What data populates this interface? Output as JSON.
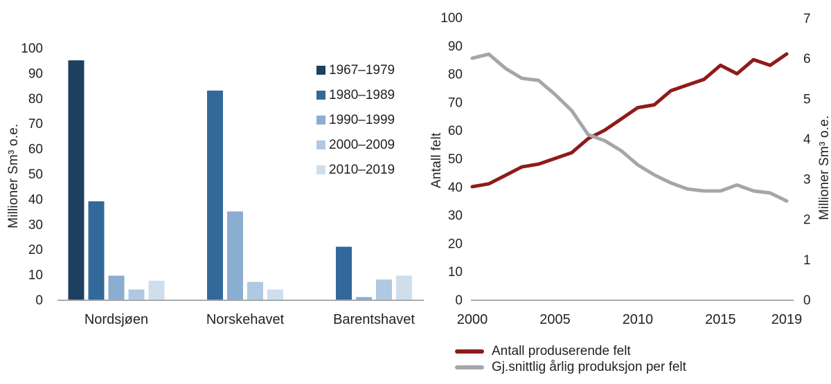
{
  "figure": {
    "background": "#ffffff",
    "text_color": "#231f20",
    "axis_color": "#a7a9ac"
  },
  "chart_data": [
    {
      "type": "bar",
      "title": "",
      "ylabel": "Millioner Sm³ o.e.",
      "ylim": [
        0,
        100
      ],
      "ytick_step": 10,
      "grid": false,
      "legend_position": "upper-right",
      "categories": [
        "Nordsjøen",
        "Norskehavet",
        "Barentshavet"
      ],
      "series": [
        {
          "name": "1967–1979",
          "color": "#1d4061",
          "values": [
            95,
            null,
            null
          ]
        },
        {
          "name": "1980–1989",
          "color": "#33689b",
          "values": [
            39,
            83,
            21
          ]
        },
        {
          "name": "1990–1999",
          "color": "#8badd2",
          "values": [
            9.5,
            35,
            1
          ]
        },
        {
          "name": "2000–2009",
          "color": "#aec9e1",
          "values": [
            4,
            7,
            8
          ]
        },
        {
          "name": "2010–2019",
          "color": "#cedeed",
          "values": [
            7.5,
            4,
            9.5
          ]
        }
      ]
    },
    {
      "type": "line",
      "title": "",
      "ylabel_left": "Antall felt",
      "ylabel_right": "Millioner Sm³ o.e.",
      "ylim_left": [
        0,
        100
      ],
      "ytick_step_left": 10,
      "ylim_right": [
        0,
        7
      ],
      "ytick_step_right": 1,
      "grid": false,
      "legend_position": "bottom",
      "x": [
        2000,
        2001,
        2002,
        2003,
        2004,
        2005,
        2006,
        2007,
        2008,
        2009,
        2010,
        2011,
        2012,
        2013,
        2014,
        2015,
        2016,
        2017,
        2018,
        2019
      ],
      "xticks": [
        2000,
        2005,
        2010,
        2015,
        2019
      ],
      "series": [
        {
          "name": "Antall produserende felt",
          "axis": "left",
          "color": "#8e1b1b",
          "values": [
            40,
            41,
            44,
            47,
            48,
            50,
            52,
            57,
            60,
            64,
            68,
            69,
            74,
            76,
            78,
            83,
            80,
            85,
            83,
            87
          ]
        },
        {
          "name": "Gj.snittlig årlig produksjon per felt",
          "axis": "right",
          "color": "#a6a6a6",
          "values": [
            6.0,
            6.1,
            5.75,
            5.5,
            5.45,
            5.1,
            4.7,
            4.1,
            3.95,
            3.7,
            3.35,
            3.1,
            2.9,
            2.75,
            2.7,
            2.7,
            2.85,
            2.7,
            2.65,
            2.45
          ]
        }
      ]
    }
  ]
}
